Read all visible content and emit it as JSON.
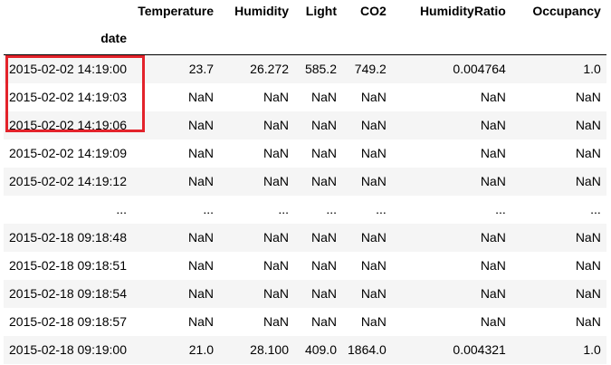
{
  "dataframe": {
    "index_name": "date",
    "columns": [
      "Temperature",
      "Humidity",
      "Light",
      "CO2",
      "HumidityRatio",
      "Occupancy"
    ],
    "rows": [
      {
        "index": "2015-02-02 14:19:00",
        "values": [
          "23.7",
          "26.272",
          "585.2",
          "749.2",
          "0.004764",
          "1.0"
        ]
      },
      {
        "index": "2015-02-02 14:19:03",
        "values": [
          "NaN",
          "NaN",
          "NaN",
          "NaN",
          "NaN",
          "NaN"
        ]
      },
      {
        "index": "2015-02-02 14:19:06",
        "values": [
          "NaN",
          "NaN",
          "NaN",
          "NaN",
          "NaN",
          "NaN"
        ]
      },
      {
        "index": "2015-02-02 14:19:09",
        "values": [
          "NaN",
          "NaN",
          "NaN",
          "NaN",
          "NaN",
          "NaN"
        ]
      },
      {
        "index": "2015-02-02 14:19:12",
        "values": [
          "NaN",
          "NaN",
          "NaN",
          "NaN",
          "NaN",
          "NaN"
        ]
      },
      {
        "index": "...",
        "values": [
          "...",
          "...",
          "...",
          "...",
          "...",
          "..."
        ]
      },
      {
        "index": "2015-02-18 09:18:48",
        "values": [
          "NaN",
          "NaN",
          "NaN",
          "NaN",
          "NaN",
          "NaN"
        ]
      },
      {
        "index": "2015-02-18 09:18:51",
        "values": [
          "NaN",
          "NaN",
          "NaN",
          "NaN",
          "NaN",
          "NaN"
        ]
      },
      {
        "index": "2015-02-18 09:18:54",
        "values": [
          "NaN",
          "NaN",
          "NaN",
          "NaN",
          "NaN",
          "NaN"
        ]
      },
      {
        "index": "2015-02-18 09:18:57",
        "values": [
          "NaN",
          "NaN",
          "NaN",
          "NaN",
          "NaN",
          "NaN"
        ]
      },
      {
        "index": "2015-02-18 09:19:00",
        "values": [
          "21.0",
          "28.100",
          "409.0",
          "1864.0",
          "0.004321",
          "1.0"
        ]
      }
    ]
  },
  "annotation": {
    "highlight_color": "#e3232b",
    "highlight_rows": 3
  }
}
